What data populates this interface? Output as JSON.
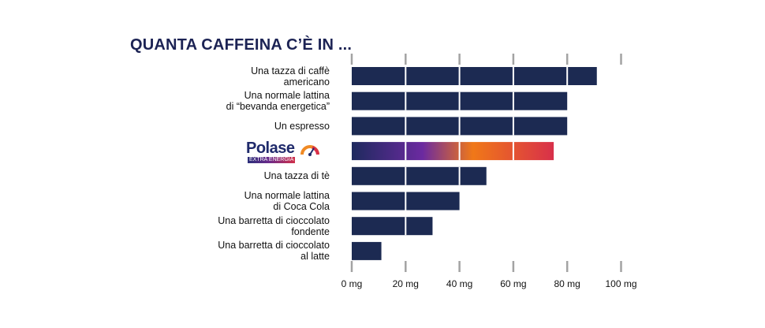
{
  "colors": {
    "bar": "#1c2a52",
    "title": "#1c2354",
    "tick": "#a3a3a3",
    "gradient": [
      "#1e2a5e",
      "#6b2aa0",
      "#f07818",
      "#d8304a"
    ]
  },
  "chart_data": {
    "type": "bar",
    "orientation": "horizontal",
    "title": "QUANTA CAFFEINA C’È IN ...",
    "xlim": [
      0,
      100
    ],
    "ticks": [
      0,
      20,
      40,
      60,
      80,
      100
    ],
    "tick_labels": [
      "0 mg",
      "20 mg",
      "40 mg",
      "60 mg",
      "80 mg",
      "100 mg"
    ],
    "grid": true,
    "categories": [
      "Una tazza di caffè\namericano",
      "Una normale lattina\ndi “bevanda energetica”",
      "Un espresso",
      "",
      "Una tazza di tè",
      "Una normale lattina\ndi Coca Cola",
      "Una barretta di cioccolato\nfondente",
      "Una barretta di cioccolato\nal latte"
    ],
    "values": [
      91,
      80,
      80,
      75,
      50,
      40,
      30,
      11
    ],
    "highlight_index": 3
  },
  "polase": {
    "word": "Polase",
    "sub": "EXTRA ENERGIA",
    "icon": "gauge-icon"
  }
}
